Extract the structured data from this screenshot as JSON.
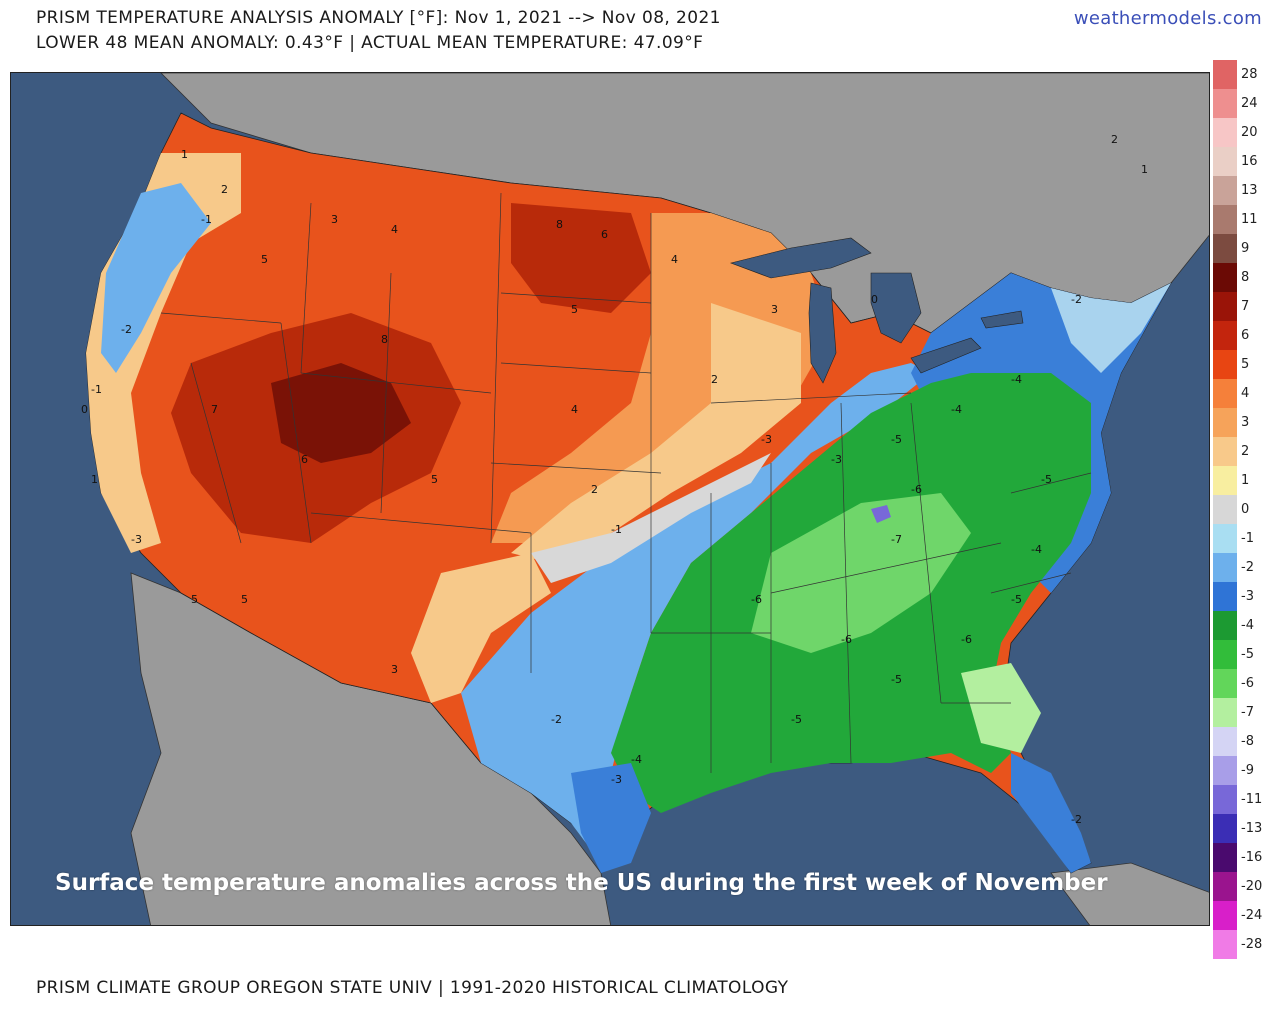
{
  "header": {
    "title_line1": "PRISM TEMPERATURE ANALYSIS ANOMALY [°F]: Nov 1, 2021 --> Nov 08, 2021",
    "title_line2": "LOWER 48 MEAN ANOMALY: 0.43°F | ACTUAL MEAN TEMPERATURE: 47.09°F",
    "brand": "weathermodels.com"
  },
  "caption": "Surface temperature anomalies across the US during the first week of November",
  "footer": "PRISM CLIMATE GROUP OREGON STATE UNIV | 1991-2020 HISTORICAL CLIMATOLOGY",
  "colors": {
    "ocean": "#3d5a80",
    "land_outside": "#9a9a9a",
    "warm_strong": "#b82a0a",
    "warm_mid": "#e8531c",
    "warm_light": "#f59a52",
    "warm_pale": "#f7c98a",
    "neutral": "#d8d8d8",
    "cool_light": "#a9d3ee",
    "cool_mid": "#3a7fd8",
    "green": "#22a83a",
    "green_light": "#6fd66a"
  },
  "legend": [
    {
      "label": "28",
      "color": "#e06464"
    },
    {
      "label": "24",
      "color": "#ee8f8f"
    },
    {
      "label": "20",
      "color": "#f7c6c6"
    },
    {
      "label": "16",
      "color": "#eacfc6"
    },
    {
      "label": "13",
      "color": "#c9a399"
    },
    {
      "label": "11",
      "color": "#a97a6e"
    },
    {
      "label": "9",
      "color": "#7c4b40"
    },
    {
      "label": "8",
      "color": "#6b0a05"
    },
    {
      "label": "7",
      "color": "#9a1408"
    },
    {
      "label": "6",
      "color": "#c3250d"
    },
    {
      "label": "5",
      "color": "#e84512"
    },
    {
      "label": "4",
      "color": "#f5803a"
    },
    {
      "label": "3",
      "color": "#f6a35a"
    },
    {
      "label": "2",
      "color": "#f8c98a"
    },
    {
      "label": "1",
      "color": "#f8eea0"
    },
    {
      "label": "0",
      "color": "#d7d7d7"
    },
    {
      "label": "-1",
      "color": "#a9def2"
    },
    {
      "label": "-2",
      "color": "#6db0ec"
    },
    {
      "label": "-3",
      "color": "#2f74d6"
    },
    {
      "label": "-4",
      "color": "#1c9a32"
    },
    {
      "label": "-5",
      "color": "#32bd3a"
    },
    {
      "label": "-6",
      "color": "#62d65a"
    },
    {
      "label": "-7",
      "color": "#b3ef9f"
    },
    {
      "label": "-8",
      "color": "#d4d4f4"
    },
    {
      "label": "-9",
      "color": "#a89ee8"
    },
    {
      "label": "-11",
      "color": "#7868d8"
    },
    {
      "label": "-13",
      "color": "#3b2eb5"
    },
    {
      "label": "-16",
      "color": "#4a0a6e"
    },
    {
      "label": "-20",
      "color": "#9a148e"
    },
    {
      "label": "-24",
      "color": "#d81fc9"
    },
    {
      "label": "-28",
      "color": "#f07be6"
    }
  ],
  "map_labels": [
    {
      "id": "wa1",
      "text": "1"
    },
    {
      "id": "wa2",
      "text": "-1"
    },
    {
      "id": "wa3",
      "text": "2"
    },
    {
      "id": "or1",
      "text": "-2"
    },
    {
      "id": "or2",
      "text": "-1"
    },
    {
      "id": "or3",
      "text": "0"
    },
    {
      "id": "ca1",
      "text": "1"
    },
    {
      "id": "ca2",
      "text": "-3"
    },
    {
      "id": "ca3",
      "text": "5"
    },
    {
      "id": "id1",
      "text": "5"
    },
    {
      "id": "mt1",
      "text": "3"
    },
    {
      "id": "mt2",
      "text": "4"
    },
    {
      "id": "nv1",
      "text": "7"
    },
    {
      "id": "ut1",
      "text": "6"
    },
    {
      "id": "wy1",
      "text": "8"
    },
    {
      "id": "co1",
      "text": "5"
    },
    {
      "id": "az1",
      "text": "5"
    },
    {
      "id": "nm1",
      "text": "3"
    },
    {
      "id": "nd1",
      "text": "8"
    },
    {
      "id": "nd2",
      "text": "6"
    },
    {
      "id": "sd1",
      "text": "5"
    },
    {
      "id": "ne1",
      "text": "4"
    },
    {
      "id": "ks1",
      "text": "2"
    },
    {
      "id": "mn1",
      "text": "4"
    },
    {
      "id": "ia1",
      "text": "2"
    },
    {
      "id": "wi1",
      "text": "3"
    },
    {
      "id": "ok1",
      "text": "-1"
    },
    {
      "id": "tx1",
      "text": "-2"
    },
    {
      "id": "tx2",
      "text": "-3"
    },
    {
      "id": "tx3",
      "text": "-4"
    },
    {
      "id": "mo1",
      "text": "-3"
    },
    {
      "id": "ar1",
      "text": "-6"
    },
    {
      "id": "la1",
      "text": "-5"
    },
    {
      "id": "ms1",
      "text": "-6"
    },
    {
      "id": "al1",
      "text": "-5"
    },
    {
      "id": "tn1",
      "text": "-7"
    },
    {
      "id": "ky1",
      "text": "-6"
    },
    {
      "id": "ga1",
      "text": "-6"
    },
    {
      "id": "fl1",
      "text": "-2"
    },
    {
      "id": "sc1",
      "text": "-5"
    },
    {
      "id": "nc1",
      "text": "-4"
    },
    {
      "id": "va1",
      "text": "-5"
    },
    {
      "id": "oh1",
      "text": "-4"
    },
    {
      "id": "in1",
      "text": "-5"
    },
    {
      "id": "pa1",
      "text": "-4"
    },
    {
      "id": "ny1",
      "text": "-2"
    },
    {
      "id": "me1",
      "text": "2"
    },
    {
      "id": "me2",
      "text": "1"
    },
    {
      "id": "mi1",
      "text": "0"
    },
    {
      "id": "il1",
      "text": "-3"
    }
  ]
}
